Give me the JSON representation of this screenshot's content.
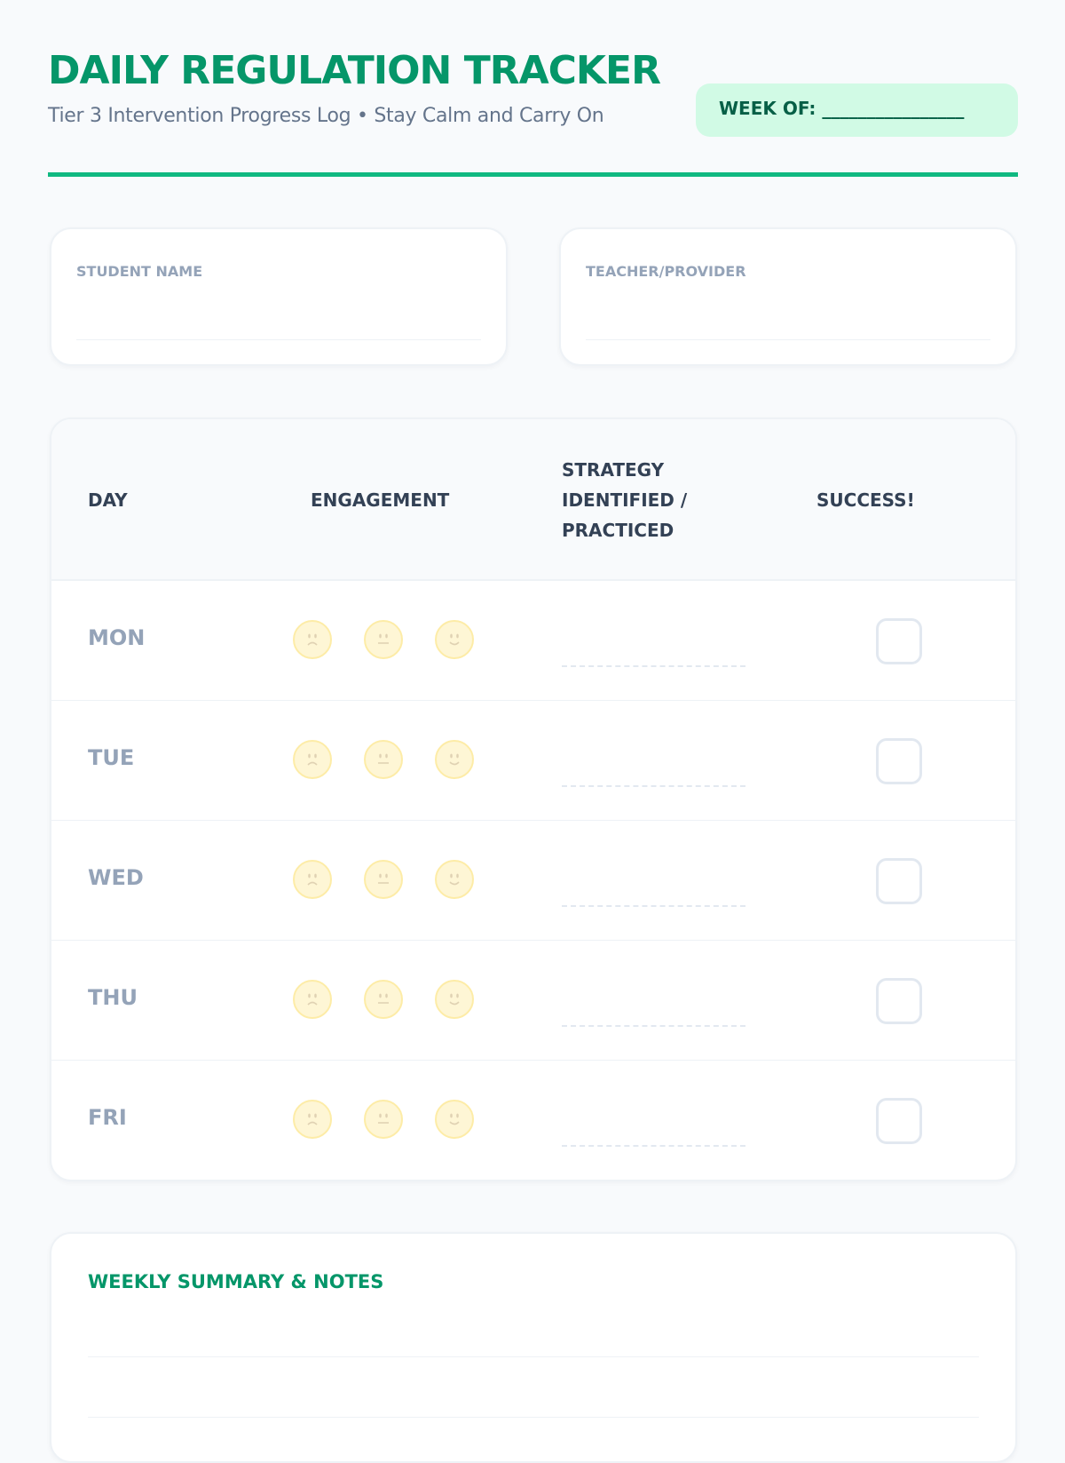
{
  "header": {
    "title": "DAILY REGULATION TRACKER",
    "subtitle": "Tier 3 Intervention Progress Log • Stay Calm and Carry On",
    "week_label": "WEEK OF: ________________"
  },
  "info": {
    "student_label": "STUDENT NAME",
    "teacher_label": "TEACHER/PROVIDER"
  },
  "table": {
    "headers": {
      "day": "DAY",
      "engagement": "ENGAGEMENT",
      "strategy_1": "STRATEGY",
      "strategy_2": "IDENTIFIED /",
      "strategy_3": "PRACTICED",
      "success": "SUCCESS!"
    },
    "rows": [
      {
        "day": "MON"
      },
      {
        "day": "TUE"
      },
      {
        "day": "WED"
      },
      {
        "day": "THU"
      },
      {
        "day": "FRI"
      }
    ],
    "engagement_icons": [
      "sad-face-icon",
      "neutral-face-icon",
      "happy-face-icon"
    ]
  },
  "summary": {
    "title": "WEEKLY SUMMARY & NOTES"
  },
  "colors": {
    "accent": "#059669",
    "rule": "#10b981",
    "pill": "#d1fae5"
  }
}
